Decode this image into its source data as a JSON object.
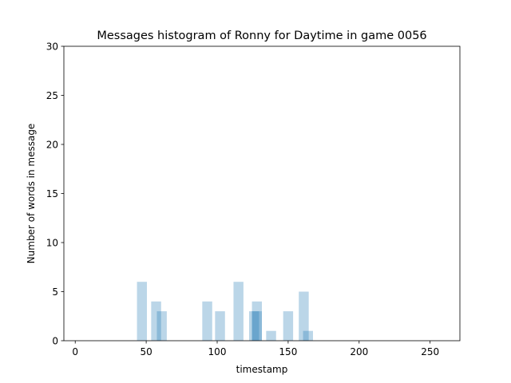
{
  "chart_data": {
    "type": "bar",
    "title": "Messages histogram of Ronny for Daytime in game 0056",
    "xlabel": "timestamp",
    "ylabel": "Number of words in message",
    "xlim": [
      -8,
      271
    ],
    "ylim": [
      0,
      30
    ],
    "xticks": [
      0,
      50,
      100,
      150,
      200,
      250
    ],
    "yticks": [
      0,
      5,
      10,
      15,
      20,
      25,
      30
    ],
    "bar_width": 7,
    "bar_color": "#1f77b4",
    "bar_opacity": 0.3,
    "grid": false,
    "bars": [
      {
        "x": 47,
        "y": 6
      },
      {
        "x": 57,
        "y": 4
      },
      {
        "x": 61,
        "y": 3
      },
      {
        "x": 93,
        "y": 4
      },
      {
        "x": 102,
        "y": 3
      },
      {
        "x": 115,
        "y": 6
      },
      {
        "x": 126,
        "y": 3
      },
      {
        "x": 128,
        "y": 4
      },
      {
        "x": 128,
        "y": 3
      },
      {
        "x": 138,
        "y": 1
      },
      {
        "x": 150,
        "y": 3
      },
      {
        "x": 161,
        "y": 5
      },
      {
        "x": 164,
        "y": 1
      }
    ]
  }
}
